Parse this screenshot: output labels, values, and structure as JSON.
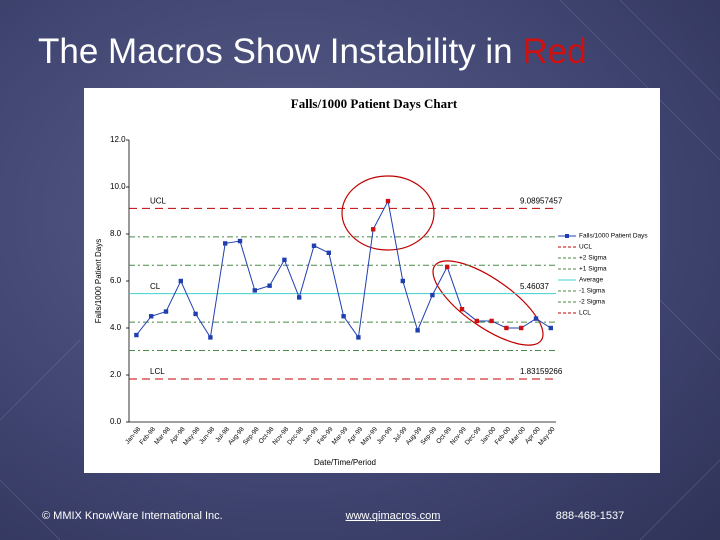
{
  "slide": {
    "title": "The Macros Show Instability in",
    "title_highlight": "Red",
    "footer_left": "© MMIX KnowWare International Inc.",
    "footer_center": "www.qimacros.com",
    "footer_right": "888-468-1537"
  },
  "chart_data": {
    "type": "line",
    "title": "Falls/1000 Patient Days Chart",
    "y_label": "Falls/1000 Patient Days",
    "x_label": "Date/Time/Period",
    "categories": [
      "Jan-98",
      "Feb-98",
      "Mar-98",
      "Apr-98",
      "May-98",
      "Jun-98",
      "Jul-98",
      "Aug-98",
      "Sep-98",
      "Oct-98",
      "Nov-98",
      "Dec-98",
      "Jan-99",
      "Feb-99",
      "Mar-99",
      "Apr-99",
      "May-99",
      "Jun-99",
      "Jul-99",
      "Aug-99",
      "Sep-99",
      "Oct-99",
      "Nov-99",
      "Dec-99",
      "Jan-00",
      "Feb-00",
      "Mar-00",
      "Apr-00",
      "May-00"
    ],
    "series": [
      {
        "name": "Falls/1000 Patient Days",
        "color": "#1f3fb0",
        "values": [
          3.7,
          4.5,
          4.7,
          6.0,
          4.6,
          3.6,
          7.6,
          7.7,
          5.6,
          5.8,
          6.9,
          5.3,
          7.5,
          7.2,
          4.5,
          3.6,
          8.2,
          9.4,
          6.0,
          3.9,
          5.4,
          6.6,
          4.8,
          4.3,
          4.3,
          4.0,
          4.0,
          4.4,
          4.0
        ],
        "point_colors": [
          "#1f3fb0",
          "#1f3fb0",
          "#1f3fb0",
          "#1f3fb0",
          "#1f3fb0",
          "#1f3fb0",
          "#1f3fb0",
          "#1f3fb0",
          "#1f3fb0",
          "#1f3fb0",
          "#1f3fb0",
          "#1f3fb0",
          "#1f3fb0",
          "#1f3fb0",
          "#1f3fb0",
          "#1f3fb0",
          "#d01010",
          "#d01010",
          "#1f3fb0",
          "#1f3fb0",
          "#1f3fb0",
          "#d01010",
          "#d01010",
          "#d01010",
          "#d01010",
          "#d01010",
          "#d01010",
          "#1f3fb0",
          "#1f3fb0"
        ]
      }
    ],
    "limits": [
      {
        "name": "UCL",
        "value": 9.08957457,
        "color": "#c00000",
        "dash": "8,5",
        "left_label": "UCL"
      },
      {
        "name": "+2 Sigma",
        "value": 7.88,
        "color": "#4a8a4a",
        "dash": "6,3,2,3"
      },
      {
        "name": "+1 Sigma",
        "value": 6.67,
        "color": "#4a8a4a",
        "dash": "6,3,2,3"
      },
      {
        "name": "Average",
        "value": 5.46037,
        "color": "#40d0d0",
        "dash": "none",
        "left_label": "CL"
      },
      {
        "name": "-1 Sigma",
        "value": 4.251,
        "color": "#4a8a4a",
        "dash": "6,3,2,3"
      },
      {
        "name": "-2 Sigma",
        "value": 3.041,
        "color": "#4a8a4a",
        "dash": "6,3,2,3"
      },
      {
        "name": "LCL",
        "value": 1.83159266,
        "color": "#c00000",
        "dash": "8,5",
        "left_label": "LCL"
      }
    ],
    "ylim": [
      0,
      12
    ],
    "yticks": [
      {
        "value": 0,
        "label": "0.0"
      },
      {
        "value": 2,
        "label": "2.0"
      },
      {
        "value": 4,
        "label": "4.0"
      },
      {
        "value": 6,
        "label": "6.0"
      },
      {
        "value": 8,
        "label": "8.0"
      },
      {
        "value": 10,
        "label": "10.0"
      },
      {
        "value": 12,
        "label": "12.0"
      }
    ]
  }
}
